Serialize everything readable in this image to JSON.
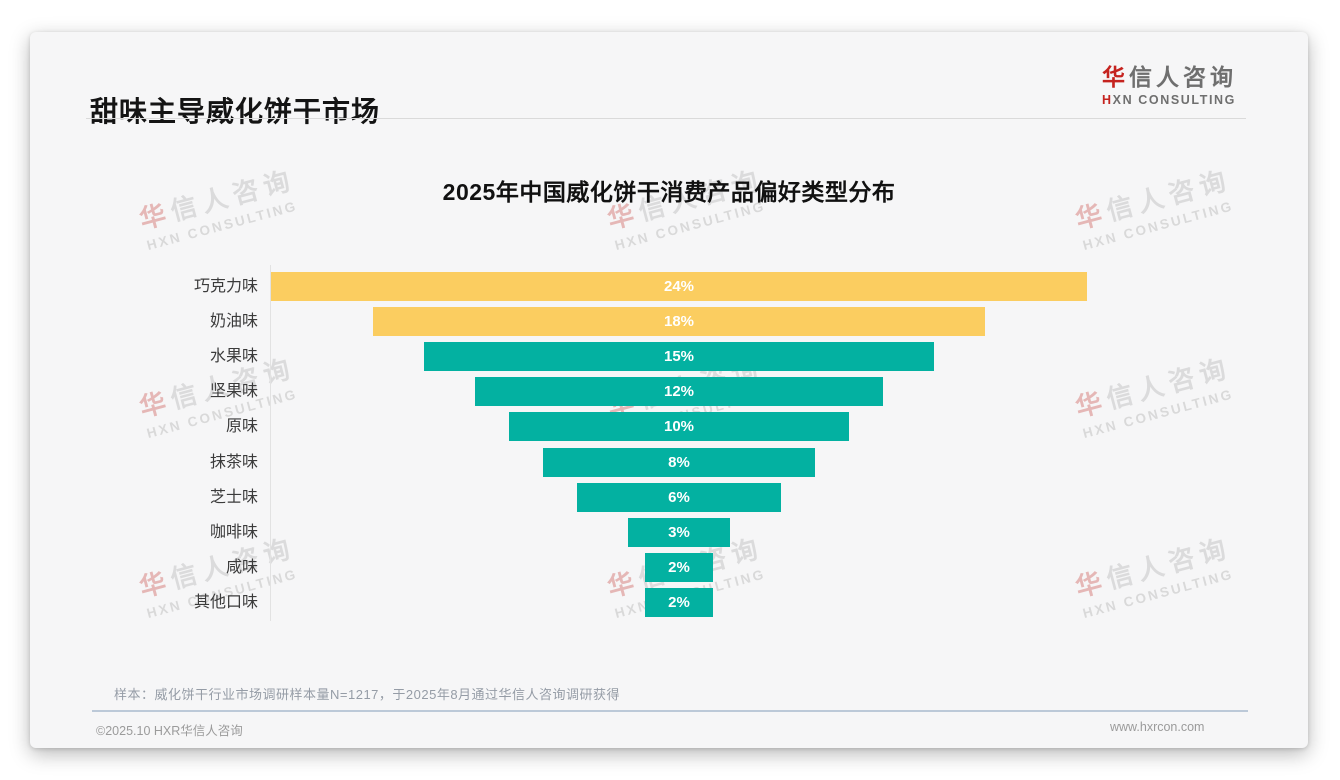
{
  "header": {
    "title": "甜味主导威化饼干市场",
    "logo": {
      "cn_accent": "华",
      "cn_rest": "信人咨询",
      "en_accent": "H",
      "en_rest": "XN CONSULTING"
    }
  },
  "watermark": {
    "cn_accent": "华",
    "cn_rest": "信人咨询",
    "en": "HXN CONSULTING"
  },
  "chart_data": {
    "type": "bar",
    "variant": "horizontal-centered-funnel",
    "title": "2025年中国威化饼干消费产品偏好类型分布",
    "categories": [
      "巧克力味",
      "奶油味",
      "水果味",
      "坚果味",
      "原味",
      "抹茶味",
      "芝士味",
      "咖啡味",
      "咸味",
      "其他口味"
    ],
    "values": [
      24,
      18,
      15,
      12,
      10,
      8,
      6,
      3,
      2,
      2
    ],
    "value_labels": [
      "24%",
      "18%",
      "15%",
      "12%",
      "10%",
      "8%",
      "6%",
      "3%",
      "2%",
      "2%"
    ],
    "bar_colors": [
      "#FBCD60",
      "#FBCD60",
      "#03B1A1",
      "#03B1A1",
      "#03B1A1",
      "#03B1A1",
      "#03B1A1",
      "#03B1A1",
      "#03B1A1",
      "#03B1A1"
    ],
    "unit": "%",
    "xlim": [
      0,
      24
    ],
    "grid": false,
    "legend_position": "none"
  },
  "footnote": "样本：威化饼干行业市场调研样本量N=1217，于2025年8月通过华信人咨询调研获得",
  "footer": {
    "left": "©2025.10 HXR华信人咨询",
    "right": "www.hxrcon.com"
  },
  "colors": {
    "accent_red": "#C5231F",
    "bar_yellow": "#FBCD60",
    "bar_teal": "#03B1A1",
    "card_background": "#F6F6F7"
  }
}
